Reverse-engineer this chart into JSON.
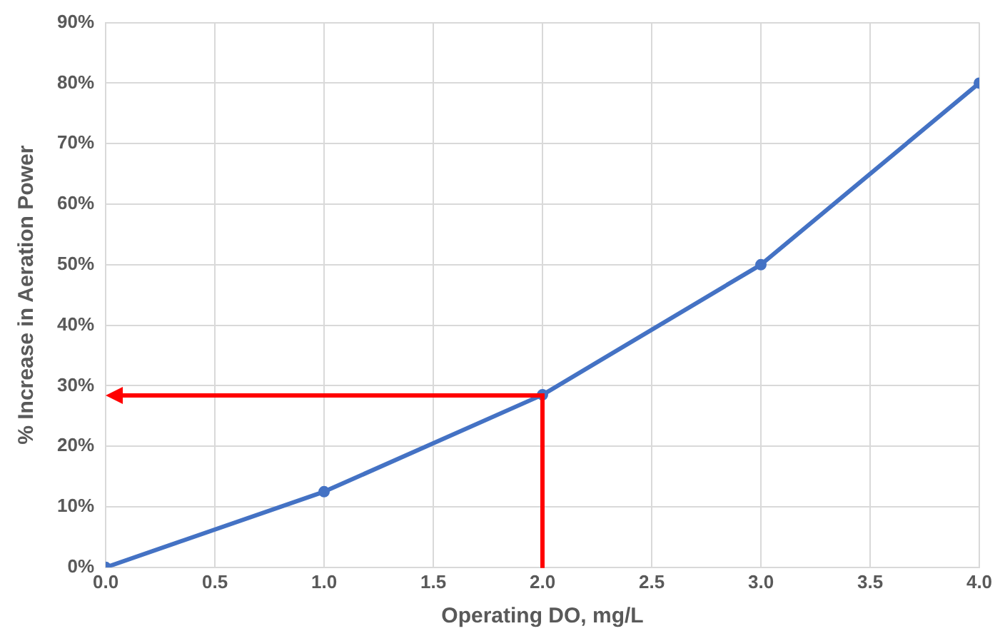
{
  "chart_data": {
    "type": "line",
    "xlabel": "Operating DO, mg/L",
    "ylabel": "% Increase in Aeration Power",
    "x": [
      0,
      1,
      2,
      3,
      4
    ],
    "series": [
      {
        "color": "#4472c4",
        "values": [
          0,
          12.5,
          28.5,
          50,
          80
        ]
      }
    ],
    "xlim": [
      0,
      4
    ],
    "ylim": [
      0,
      90
    ],
    "xticks": [
      {
        "value": 0,
        "label": "0.0"
      },
      {
        "value": 0.5,
        "label": "0.5"
      },
      {
        "value": 1,
        "label": "1.0"
      },
      {
        "value": 1.5,
        "label": "1.5"
      },
      {
        "value": 2,
        "label": "2.0"
      },
      {
        "value": 2.5,
        "label": "2.5"
      },
      {
        "value": 3,
        "label": "3.0"
      },
      {
        "value": 3.5,
        "label": "3.5"
      },
      {
        "value": 4,
        "label": "4.0"
      }
    ],
    "yticks": [
      {
        "value": 0,
        "label": "0%"
      },
      {
        "value": 10,
        "label": "10%"
      },
      {
        "value": 20,
        "label": "20%"
      },
      {
        "value": 30,
        "label": "30%"
      },
      {
        "value": 40,
        "label": "40%"
      },
      {
        "value": 50,
        "label": "50%"
      },
      {
        "value": 60,
        "label": "60%"
      },
      {
        "value": 70,
        "label": "70%"
      },
      {
        "value": 80,
        "label": "80%"
      },
      {
        "value": 90,
        "label": "90%"
      }
    ],
    "grid": true,
    "legend": false,
    "marker": "circle",
    "line_style": "solid"
  }
}
